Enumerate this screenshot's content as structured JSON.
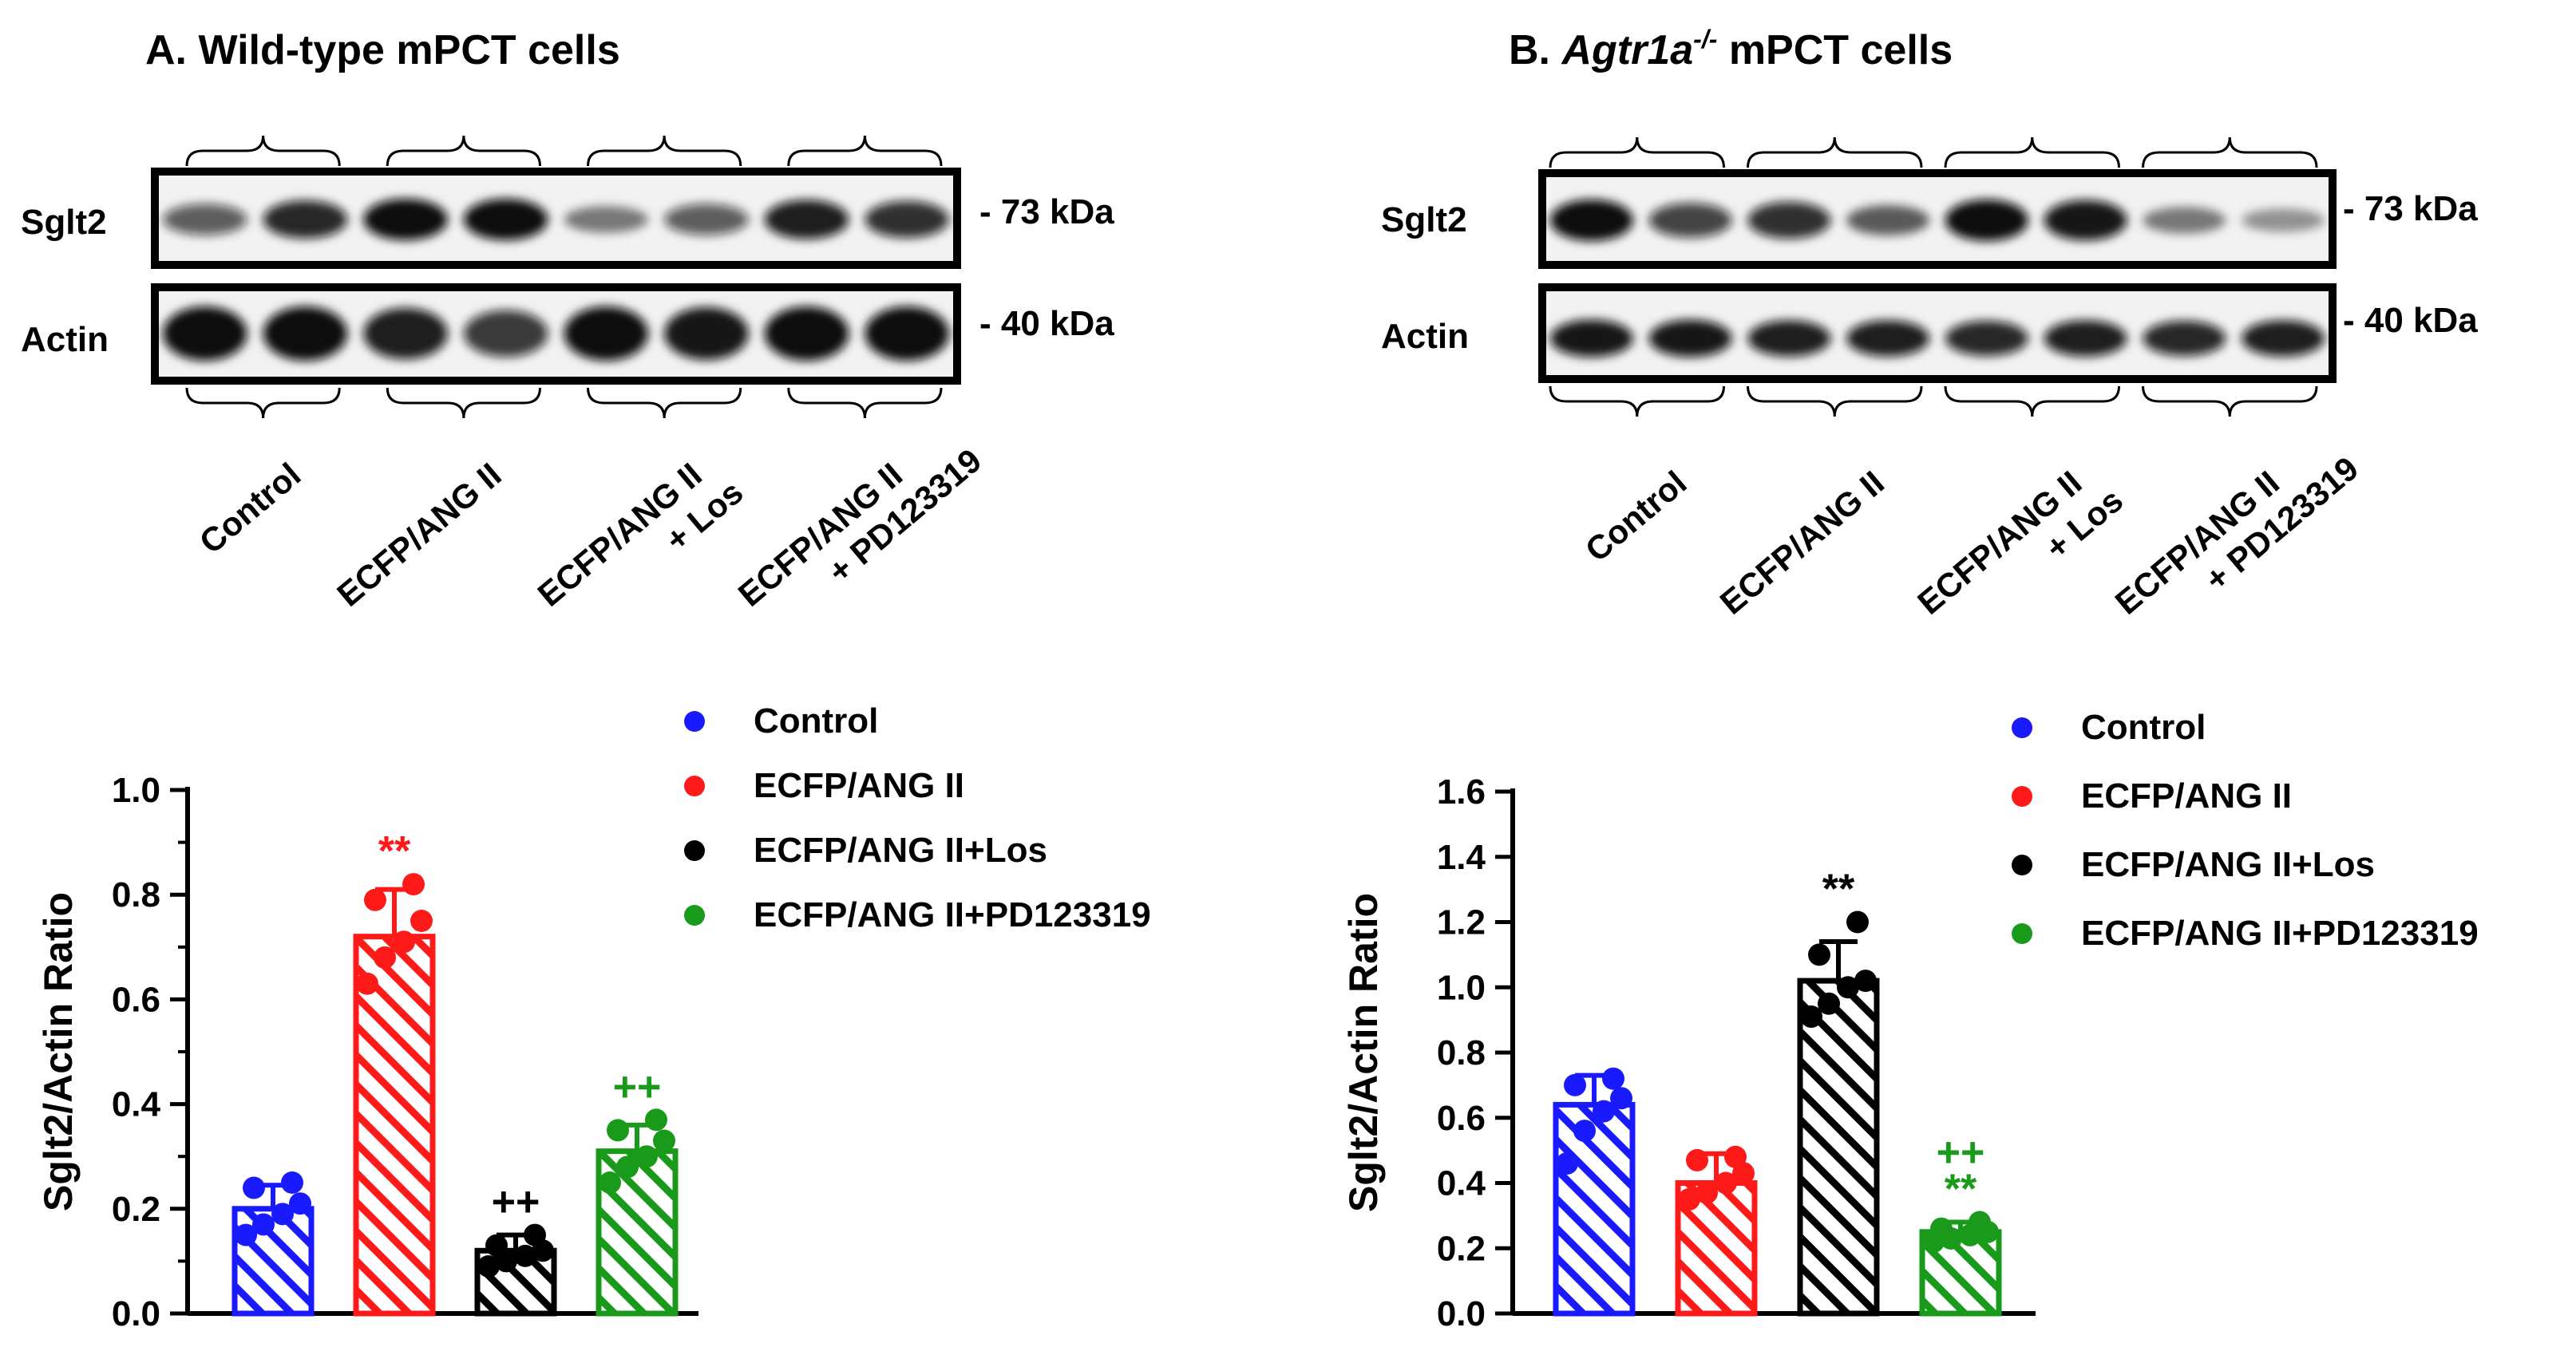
{
  "panel_a": {
    "title": "A. Wild-type mPCT cells",
    "blot_rows": [
      "Sglt2",
      "Actin"
    ],
    "markers": [
      "- 73 kDa",
      "- 40 kDa"
    ],
    "lane_groups": [
      "Control",
      "ECFP/ANG II",
      "ECFP/ANG II\n+ Los",
      "ECFP/ANG II\n+ PD123319"
    ],
    "band_intensity": {
      "Sglt2": [
        0.55,
        0.85,
        1.0,
        1.0,
        0.35,
        0.55,
        0.9,
        0.8
      ],
      "Actin": [
        1.0,
        1.0,
        0.9,
        0.75,
        1.0,
        0.95,
        1.0,
        1.0
      ]
    }
  },
  "panel_b": {
    "title_prefix": "B. ",
    "title_gene": "Agtr1a",
    "title_sup": "-/-",
    "title_suffix": " mPCT cells",
    "blot_rows": [
      "Sglt2",
      "Actin"
    ],
    "markers": [
      "- 73 kDa",
      "- 40 kDa"
    ],
    "lane_groups": [
      "Control",
      "ECFP/ANG II",
      "ECFP/ANG II\n+ Los",
      "ECFP/ANG II\n+ PD123319"
    ],
    "band_intensity": {
      "Sglt2": [
        1.0,
        0.7,
        0.8,
        0.5,
        1.0,
        0.95,
        0.35,
        0.2
      ],
      "Actin": [
        0.95,
        0.95,
        0.9,
        0.9,
        0.85,
        0.9,
        0.85,
        0.9
      ]
    }
  },
  "chart_data": [
    {
      "type": "bar",
      "ylabel": "Sglt2/Actin Ratio",
      "ylim": [
        0,
        1.0
      ],
      "yticks": [
        "0.0",
        "0.2",
        "0.4",
        "0.6",
        "0.8",
        "1.0"
      ],
      "legend_position": "top-right",
      "bar_style": "hatched, colored outline",
      "categories": [
        "Control",
        "ECFP/ANG II",
        "ECFP/ANG II+Los",
        "ECFP/ANG II+PD123319"
      ],
      "colors": [
        "#1a1aff",
        "#ff1a1a",
        "#000000",
        "#1a9a1a"
      ],
      "values": [
        0.2,
        0.72,
        0.12,
        0.31
      ],
      "errors": [
        0.045,
        0.09,
        0.03,
        0.05
      ],
      "points": [
        [
          0.15,
          0.17,
          0.19,
          0.21,
          0.24,
          0.25
        ],
        [
          0.63,
          0.68,
          0.71,
          0.75,
          0.79,
          0.82
        ],
        [
          0.09,
          0.1,
          0.11,
          0.12,
          0.13,
          0.15
        ],
        [
          0.25,
          0.28,
          0.3,
          0.33,
          0.35,
          0.37
        ]
      ],
      "annotations": [
        "",
        "**",
        "++",
        "++"
      ]
    },
    {
      "type": "bar",
      "ylabel": "Sglt2/Actin Ratio",
      "ylim": [
        0,
        1.6
      ],
      "yticks": [
        "0.0",
        "0.2",
        "0.4",
        "0.6",
        "0.8",
        "1.0",
        "1.2",
        "1.4",
        "1.6"
      ],
      "legend_position": "top-right",
      "bar_style": "hatched, colored outline",
      "categories": [
        "Control",
        "ECFP/ANG II",
        "ECFP/ANG II+Los",
        "ECFP/ANG II+PD123319"
      ],
      "colors": [
        "#1a1aff",
        "#ff1a1a",
        "#000000",
        "#1a9a1a"
      ],
      "values": [
        0.64,
        0.4,
        1.02,
        0.25
      ],
      "errors": [
        0.09,
        0.09,
        0.12,
        0.03
      ],
      "points": [
        [
          0.46,
          0.56,
          0.62,
          0.66,
          0.7,
          0.72
        ],
        [
          0.35,
          0.37,
          0.4,
          0.43,
          0.47,
          0.48
        ],
        [
          0.91,
          0.95,
          1.0,
          1.02,
          1.1,
          1.2
        ],
        [
          0.22,
          0.23,
          0.24,
          0.25,
          0.26,
          0.28
        ]
      ],
      "annotations": [
        "",
        "",
        "**",
        "++\n**"
      ]
    }
  ]
}
